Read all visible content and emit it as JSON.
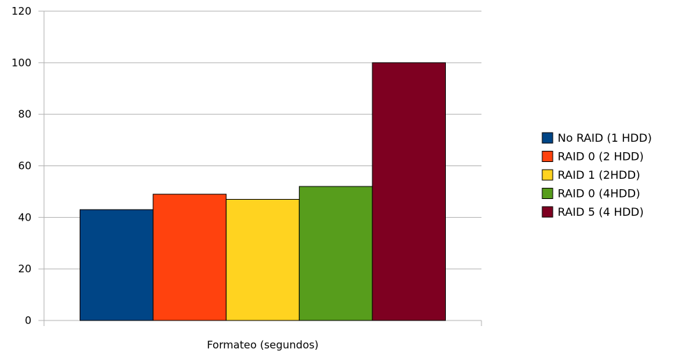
{
  "chart_data": {
    "type": "bar",
    "categories": [
      "Formateo (segundos)"
    ],
    "series": [
      {
        "name": "No RAID (1 HDD)",
        "values": [
          43
        ],
        "color": "#004586"
      },
      {
        "name": "RAID 0 (2 HDD)",
        "values": [
          49
        ],
        "color": "#ff420e"
      },
      {
        "name": "RAID 1 (2HDD)",
        "values": [
          47
        ],
        "color": "#ffd320"
      },
      {
        "name": "RAID 0 (4HDD)",
        "values": [
          52
        ],
        "color": "#579d1c"
      },
      {
        "name": "RAID 5 (4 HDD)",
        "values": [
          100
        ],
        "color": "#7e0021"
      }
    ],
    "ylim": [
      0,
      120
    ],
    "yticks": [
      0,
      20,
      40,
      60,
      80,
      100,
      120
    ],
    "grid": true,
    "legend_position": "right"
  }
}
